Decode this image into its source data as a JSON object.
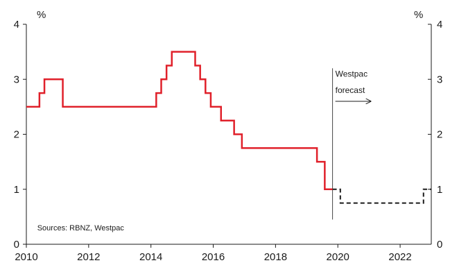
{
  "chart_data": {
    "type": "line",
    "title": "",
    "xlabel": "",
    "ylabel": "",
    "y_unit_left": "%",
    "y_unit_right": "%",
    "xlim": [
      2010,
      2023
    ],
    "ylim": [
      0,
      4
    ],
    "x_ticks": [
      2010,
      2012,
      2014,
      2016,
      2018,
      2020,
      2022
    ],
    "x_tick_labels": [
      "2010",
      "2012",
      "2014",
      "2016",
      "2018",
      "2020",
      "2022"
    ],
    "y_ticks": [
      0,
      1,
      2,
      3,
      4
    ],
    "y_tick_labels_left": [
      "0",
      "1",
      "2",
      "3",
      "4"
    ],
    "y_tick_labels_right": [
      "0",
      "1",
      "2",
      "3",
      "4"
    ],
    "grid": false,
    "step_interpolation": true,
    "series": [
      {
        "color": "#e0202a",
        "line_style": "solid",
        "x": [
          2010.0,
          2010.42,
          2010.58,
          2011.17,
          2014.17,
          2014.33,
          2014.5,
          2014.67,
          2015.42,
          2015.58,
          2015.75,
          2015.92,
          2016.25,
          2016.67,
          2016.92,
          2019.33,
          2019.58,
          2019.83
        ],
        "y": [
          2.5,
          2.75,
          3.0,
          2.5,
          2.75,
          3.0,
          3.25,
          3.5,
          3.25,
          3.0,
          2.75,
          2.5,
          2.25,
          2.0,
          1.75,
          1.5,
          1.0,
          1.0
        ]
      },
      {
        "color": "#1a1a1a",
        "line_style": "dashed",
        "x": [
          2019.83,
          2020.08,
          2022.75,
          2022.92,
          2023.0
        ],
        "y": [
          1.0,
          0.75,
          1.0,
          1.0,
          1.0
        ]
      }
    ],
    "annotations": [
      {
        "text": "Westpac",
        "x": 2019.92,
        "y": 3.05
      },
      {
        "text": "forecast",
        "x": 2019.92,
        "y": 2.75
      },
      {
        "text": "Sources: RBNZ, Westpac",
        "x": 2010.35,
        "y": 0.25
      }
    ],
    "vertical_lines": [
      {
        "x": 2019.83,
        "y_from": 0.45,
        "y_to": 3.2
      }
    ],
    "arrow": {
      "x_from": 2019.92,
      "x_to": 2021.05,
      "y": 2.6
    }
  }
}
